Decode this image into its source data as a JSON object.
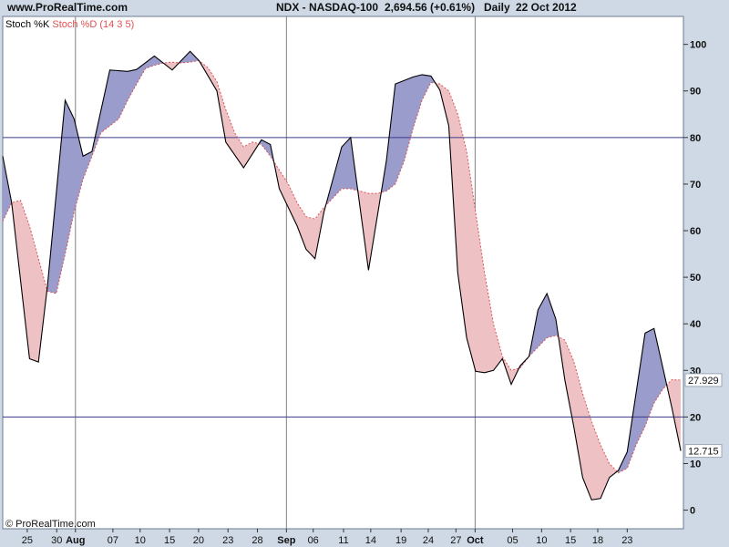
{
  "header": {
    "site": "www.ProRealTime.com",
    "instrument": "NDX - NASDAQ-100",
    "price": "2,694.56 (+0.61%)",
    "period": "Daily",
    "date": "22 Oct 2012"
  },
  "legend": {
    "k_label": "Stoch %K",
    "d_label": "Stoch %D (14 3 5)"
  },
  "footer": {
    "copyright": "© ProRealTime.com"
  },
  "colors": {
    "plot_bg": "#ffffff",
    "frame_bg": "#cfd9e6",
    "k_line": "#000000",
    "d_line": "#e05050",
    "fill_k_above": "#9a9ccc",
    "fill_d_above": "#eec2c4",
    "ref_line": "#3a3a8a",
    "grid": "#808080"
  },
  "chart_data": {
    "type": "line",
    "title": "NDX - NASDAQ-100",
    "xlabel": "",
    "ylabel": "",
    "ylim": [
      -4,
      106
    ],
    "yticks": [
      0,
      10,
      20,
      30,
      40,
      50,
      60,
      70,
      80,
      90,
      100
    ],
    "reference_lines": [
      20,
      80
    ],
    "x_tick_labels": [
      {
        "label": "25",
        "i": 5.5,
        "bold": false
      },
      {
        "label": "30",
        "i": 12.1,
        "bold": false
      },
      {
        "label": "Aug",
        "i": 16.3,
        "bold": true
      },
      {
        "label": "07",
        "i": 24.7,
        "bold": false
      },
      {
        "label": "10",
        "i": 30.8,
        "bold": false
      },
      {
        "label": "15",
        "i": 37.4,
        "bold": false
      },
      {
        "label": "20",
        "i": 43.9,
        "bold": false
      },
      {
        "label": "23",
        "i": 50.5,
        "bold": false
      },
      {
        "label": "28",
        "i": 57.1,
        "bold": false
      },
      {
        "label": "Sep",
        "i": 63.6,
        "bold": true
      },
      {
        "label": "06",
        "i": 69.6,
        "bold": false
      },
      {
        "label": "11",
        "i": 76.4,
        "bold": false
      },
      {
        "label": "14",
        "i": 82.5,
        "bold": false
      },
      {
        "label": "19",
        "i": 89.3,
        "bold": false
      },
      {
        "label": "24",
        "i": 95.4,
        "bold": false
      },
      {
        "label": "27",
        "i": 101.6,
        "bold": false
      },
      {
        "label": "Oct",
        "i": 105.9,
        "bold": true
      },
      {
        "label": "05",
        "i": 114.3,
        "bold": false
      },
      {
        "label": "10",
        "i": 120.8,
        "bold": false
      },
      {
        "label": "15",
        "i": 127.3,
        "bold": false
      },
      {
        "label": "18",
        "i": 133.4,
        "bold": false
      },
      {
        "label": "23",
        "i": 140.0,
        "bold": false
      }
    ],
    "month_dividers": [
      16.3,
      63.6,
      105.9
    ],
    "series": [
      {
        "name": "Stoch %K",
        "last_label": "12.715",
        "points": [
          [
            0,
            76
          ],
          [
            2,
            66
          ],
          [
            6,
            32.5
          ],
          [
            8,
            31.8
          ],
          [
            10,
            48
          ],
          [
            14,
            88
          ],
          [
            16,
            84
          ],
          [
            18,
            76
          ],
          [
            20,
            77
          ],
          [
            24,
            94.5
          ],
          [
            28,
            94.2
          ],
          [
            30,
            94.6
          ],
          [
            34,
            97.5
          ],
          [
            38,
            94.5
          ],
          [
            42,
            98.5
          ],
          [
            44,
            96.5
          ],
          [
            48,
            90
          ],
          [
            50,
            79
          ],
          [
            54,
            73.5
          ],
          [
            58,
            79.5
          ],
          [
            60,
            78.5
          ],
          [
            62,
            69
          ],
          [
            66,
            61
          ],
          [
            68,
            56
          ],
          [
            70,
            54
          ],
          [
            72,
            64
          ],
          [
            76,
            78
          ],
          [
            78,
            80
          ],
          [
            82,
            51.5
          ],
          [
            86,
            75
          ],
          [
            88,
            91.5
          ],
          [
            92,
            93
          ],
          [
            94,
            93.5
          ],
          [
            96,
            93.2
          ],
          [
            98,
            90.2
          ],
          [
            100,
            82.5
          ],
          [
            102,
            51
          ],
          [
            104,
            37
          ],
          [
            106,
            29.8
          ],
          [
            108,
            29.5
          ],
          [
            110,
            30
          ],
          [
            112,
            32.5
          ],
          [
            114,
            27
          ],
          [
            116,
            31
          ],
          [
            118,
            33
          ],
          [
            120,
            43
          ],
          [
            122,
            46.5
          ],
          [
            124,
            41
          ],
          [
            126,
            28
          ],
          [
            128,
            18
          ],
          [
            130,
            7
          ],
          [
            132,
            2.2
          ],
          [
            134,
            2.5
          ],
          [
            136,
            7
          ],
          [
            138,
            8.5
          ],
          [
            140,
            12.5
          ],
          [
            144,
            38
          ],
          [
            146,
            39
          ],
          [
            150,
            22
          ],
          [
            152,
            12.715
          ]
        ]
      },
      {
        "name": "Stoch %D (14 3 5)",
        "last_label": "27.929",
        "points": [
          [
            0,
            62
          ],
          [
            2,
            66
          ],
          [
            4,
            66.5
          ],
          [
            6,
            61
          ],
          [
            8,
            54
          ],
          [
            10,
            47
          ],
          [
            12,
            46.5
          ],
          [
            14,
            55
          ],
          [
            16,
            64
          ],
          [
            18,
            71
          ],
          [
            20,
            76
          ],
          [
            22,
            81
          ],
          [
            24,
            82.5
          ],
          [
            26,
            84
          ],
          [
            28,
            88
          ],
          [
            30,
            91.5
          ],
          [
            32,
            94.8
          ],
          [
            34,
            95.5
          ],
          [
            36,
            96
          ],
          [
            38,
            96.2
          ],
          [
            40,
            96
          ],
          [
            42,
            96.2
          ],
          [
            44,
            96.5
          ],
          [
            46,
            95
          ],
          [
            48,
            92
          ],
          [
            50,
            86
          ],
          [
            52,
            81
          ],
          [
            54,
            78
          ],
          [
            56,
            79
          ],
          [
            58,
            78.5
          ],
          [
            60,
            76
          ],
          [
            62,
            73
          ],
          [
            64,
            70
          ],
          [
            66,
            66
          ],
          [
            68,
            63
          ],
          [
            70,
            62.5
          ],
          [
            72,
            65
          ],
          [
            74,
            67
          ],
          [
            76,
            69
          ],
          [
            78,
            69
          ],
          [
            80,
            68.5
          ],
          [
            82,
            68
          ],
          [
            84,
            68
          ],
          [
            86,
            68.5
          ],
          [
            88,
            70
          ],
          [
            90,
            75
          ],
          [
            92,
            82
          ],
          [
            94,
            88
          ],
          [
            96,
            91.8
          ],
          [
            98,
            91.5
          ],
          [
            100,
            90
          ],
          [
            102,
            85
          ],
          [
            104,
            77
          ],
          [
            106,
            64
          ],
          [
            108,
            51
          ],
          [
            110,
            40
          ],
          [
            112,
            33
          ],
          [
            114,
            30
          ],
          [
            116,
            30.5
          ],
          [
            118,
            33
          ],
          [
            120,
            35
          ],
          [
            122,
            37
          ],
          [
            124,
            37.5
          ],
          [
            126,
            36.5
          ],
          [
            128,
            32
          ],
          [
            130,
            25
          ],
          [
            132,
            19
          ],
          [
            134,
            14
          ],
          [
            136,
            10
          ],
          [
            138,
            8
          ],
          [
            140,
            9
          ],
          [
            142,
            14
          ],
          [
            144,
            18
          ],
          [
            146,
            23
          ],
          [
            148,
            26
          ],
          [
            150,
            28
          ],
          [
            152,
            27.929
          ]
        ]
      }
    ]
  }
}
